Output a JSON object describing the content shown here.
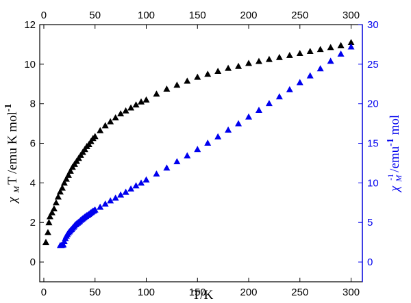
{
  "chart_data": {
    "type": "scatter",
    "x_axis": {
      "label": "T/K",
      "range": [
        -4,
        311
      ],
      "ticks": [
        0,
        50,
        100,
        150,
        200,
        250,
        300
      ]
    },
    "x_axis_top": {
      "range": [
        -4,
        311
      ],
      "ticks": [
        0,
        50,
        100,
        150,
        200,
        250,
        300
      ]
    },
    "y_axis_left": {
      "label_parts": {
        "chi": "χ",
        "sub": "M",
        "rest": "T /emu K mol",
        "sup": "-1"
      },
      "range": [
        -1,
        12
      ],
      "ticks": [
        0,
        2,
        4,
        6,
        8,
        10,
        12
      ]
    },
    "y_axis_right": {
      "label_parts": {
        "chi": "χ",
        "sub": "M",
        "sup": "-1",
        "rest": "/emu",
        "sup2": "-1",
        "rest2": " mol"
      },
      "range": [
        -2.5,
        30
      ],
      "ticks": [
        0,
        5,
        10,
        15,
        20,
        25,
        30
      ]
    },
    "grid": false,
    "legend": "none",
    "series": [
      {
        "axis": "left",
        "marker": "triangle-up",
        "color": "#000000",
        "x": [
          2,
          4,
          5,
          6,
          8,
          10,
          12,
          14,
          16,
          18,
          20,
          22,
          24,
          26,
          28,
          30,
          32,
          34,
          36,
          38,
          40,
          42,
          44,
          46,
          48,
          50,
          55,
          60,
          65,
          70,
          75,
          80,
          85,
          90,
          95,
          100,
          110,
          120,
          130,
          140,
          150,
          160,
          170,
          180,
          190,
          200,
          210,
          220,
          230,
          240,
          250,
          260,
          270,
          280,
          290,
          300
        ],
        "y": [
          1.0,
          1.5,
          2.0,
          2.3,
          2.5,
          2.7,
          3.0,
          3.3,
          3.55,
          3.75,
          4.0,
          4.2,
          4.4,
          4.6,
          4.8,
          4.95,
          5.1,
          5.25,
          5.4,
          5.55,
          5.7,
          5.85,
          5.95,
          6.1,
          6.25,
          6.35,
          6.65,
          6.9,
          7.1,
          7.3,
          7.5,
          7.65,
          7.8,
          7.95,
          8.1,
          8.2,
          8.5,
          8.75,
          8.95,
          9.15,
          9.35,
          9.5,
          9.65,
          9.8,
          9.9,
          10.05,
          10.15,
          10.25,
          10.35,
          10.45,
          10.55,
          10.65,
          10.75,
          10.85,
          10.95,
          11.1
        ]
      },
      {
        "axis": "right",
        "marker": "triangle-up",
        "color": "#0000ee",
        "x": [
          16,
          17,
          18,
          19,
          20,
          21,
          22,
          23,
          24,
          25,
          26,
          27,
          28,
          29,
          30,
          31,
          32,
          33,
          34,
          35,
          36,
          37,
          38,
          39,
          40,
          41,
          42,
          43,
          44,
          45,
          46,
          47,
          48,
          49,
          50,
          55,
          60,
          65,
          70,
          75,
          80,
          85,
          90,
          95,
          100,
          110,
          120,
          130,
          140,
          150,
          160,
          170,
          180,
          190,
          200,
          210,
          220,
          230,
          240,
          250,
          260,
          270,
          280,
          290,
          300
        ],
        "y": [
          2.1,
          2.1,
          2.15,
          2.2,
          2.6,
          3.0,
          3.3,
          3.5,
          3.7,
          3.85,
          4.0,
          4.15,
          4.3,
          4.45,
          4.6,
          4.75,
          4.85,
          4.95,
          5.05,
          5.15,
          5.3,
          5.4,
          5.5,
          5.6,
          5.7,
          5.8,
          5.9,
          5.95,
          6.05,
          6.15,
          6.25,
          6.35,
          6.45,
          6.5,
          6.6,
          6.95,
          7.35,
          7.75,
          8.1,
          8.5,
          8.85,
          9.25,
          9.65,
          10.0,
          10.4,
          11.15,
          11.9,
          12.7,
          13.45,
          14.25,
          15.05,
          15.85,
          16.7,
          17.5,
          18.35,
          19.2,
          20.05,
          20.9,
          21.8,
          22.7,
          23.55,
          24.45,
          25.4,
          26.3,
          27.2
        ]
      }
    ],
    "colors": {
      "left_axis": "#000000",
      "right_axis": "#0000ee"
    }
  }
}
